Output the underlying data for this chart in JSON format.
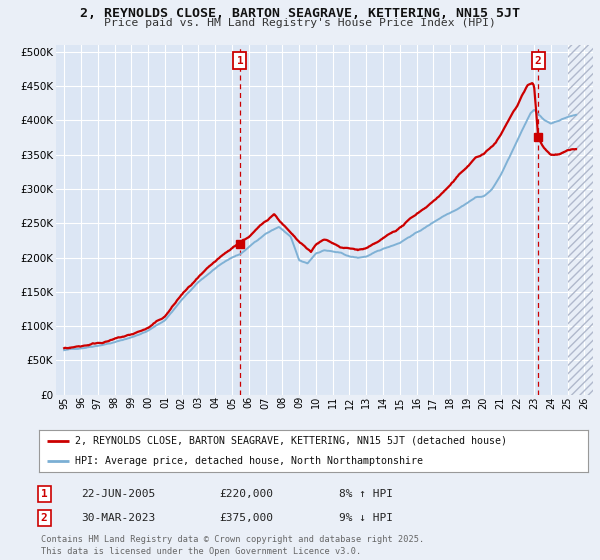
{
  "title": "2, REYNOLDS CLOSE, BARTON SEAGRAVE, KETTERING, NN15 5JT",
  "subtitle": "Price paid vs. HM Land Registry's House Price Index (HPI)",
  "hpi_label": "HPI: Average price, detached house, North Northamptonshire",
  "price_label": "2, REYNOLDS CLOSE, BARTON SEAGRAVE, KETTERING, NN15 5JT (detached house)",
  "sale1_date": "22-JUN-2005",
  "sale1_price": 220000,
  "sale1_hpi": "8% ↑ HPI",
  "sale2_date": "30-MAR-2023",
  "sale2_price": 375000,
  "sale2_hpi": "9% ↓ HPI",
  "footer": "Contains HM Land Registry data © Crown copyright and database right 2025.\nThis data is licensed under the Open Government Licence v3.0.",
  "ylim": [
    0,
    510000
  ],
  "yticks": [
    0,
    50000,
    100000,
    150000,
    200000,
    250000,
    300000,
    350000,
    400000,
    450000,
    500000
  ],
  "hpi_color": "#7bafd4",
  "price_color": "#cc0000",
  "bg_color": "#eaeff7",
  "plot_bg": "#dce6f4",
  "grid_color": "#ffffff",
  "marker1_x": 2005.47,
  "marker2_x": 2023.24,
  "marker1_y": 220000,
  "marker2_y": 375000,
  "xmin": 1994.5,
  "xmax": 2026.5,
  "hatch_start": 2025.0
}
